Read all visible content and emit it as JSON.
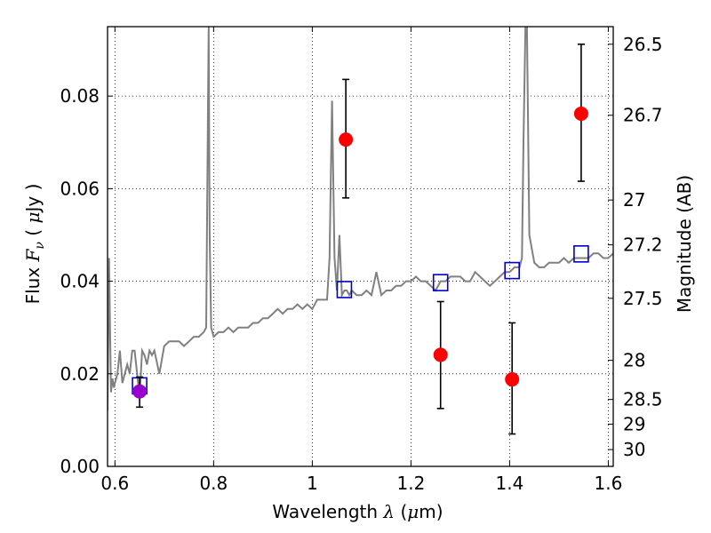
{
  "chart_data": {
    "type": "scatter",
    "xlabel": "Wavelength  λ (μm)",
    "ylabel": "Flux  F_ν  ( μJy )",
    "ylabel_parts": {
      "pre": "Flux ",
      "sym": "F",
      "sub": "ν",
      "paren_open": "  ( ",
      "mu": "μ",
      "unit": "Jy )"
    },
    "xlabel_parts": {
      "pre": "Wavelength ",
      "sym": "λ",
      "open": " (",
      "mu": "μ",
      "unit": "m)"
    },
    "y2label": "Magnitude (AB)",
    "xlim": [
      0.585,
      1.61
    ],
    "ylim": [
      0.0,
      0.095
    ],
    "grid": true,
    "x_ticks": [
      0.6,
      0.8,
      1.0,
      1.2,
      1.4,
      1.6
    ],
    "x_tick_labels": [
      "0.6",
      "0.8",
      "1",
      "1.2",
      "1.4",
      "1.6"
    ],
    "y_ticks": [
      0.0,
      0.02,
      0.04,
      0.06,
      0.08
    ],
    "y_tick_labels": [
      "0.00",
      "0.02",
      "0.04",
      "0.06",
      "0.08"
    ],
    "y2_tick_labels": [
      "26.5",
      "26.7",
      "27",
      "27.2",
      "27.5",
      "28",
      "28.5",
      "29",
      "30"
    ],
    "y2_tick_mags": [
      26.5,
      26.7,
      27.0,
      27.2,
      27.5,
      28.0,
      28.5,
      29.0,
      30.0
    ],
    "series": [
      {
        "kind": "spectrum_line",
        "color": "#808080",
        "x": [
          0.585,
          0.588,
          0.59,
          0.592,
          0.595,
          0.598,
          0.6,
          0.605,
          0.61,
          0.615,
          0.62,
          0.625,
          0.63,
          0.635,
          0.64,
          0.645,
          0.65,
          0.655,
          0.66,
          0.665,
          0.67,
          0.675,
          0.68,
          0.69,
          0.7,
          0.71,
          0.72,
          0.73,
          0.74,
          0.75,
          0.76,
          0.77,
          0.78,
          0.785,
          0.788,
          0.79,
          0.792,
          0.795,
          0.8,
          0.81,
          0.82,
          0.83,
          0.84,
          0.85,
          0.86,
          0.87,
          0.88,
          0.89,
          0.9,
          0.91,
          0.92,
          0.93,
          0.94,
          0.95,
          0.96,
          0.97,
          0.98,
          0.99,
          1.0,
          1.01,
          1.02,
          1.03,
          1.035,
          1.04,
          1.045,
          1.05,
          1.055,
          1.06,
          1.065,
          1.07,
          1.075,
          1.08,
          1.09,
          1.1,
          1.11,
          1.12,
          1.13,
          1.14,
          1.15,
          1.16,
          1.17,
          1.18,
          1.19,
          1.2,
          1.21,
          1.22,
          1.23,
          1.24,
          1.25,
          1.26,
          1.27,
          1.28,
          1.29,
          1.3,
          1.31,
          1.32,
          1.33,
          1.34,
          1.35,
          1.36,
          1.37,
          1.38,
          1.39,
          1.4,
          1.41,
          1.42,
          1.425,
          1.428,
          1.432,
          1.435,
          1.44,
          1.45,
          1.46,
          1.47,
          1.48,
          1.49,
          1.5,
          1.51,
          1.52,
          1.53,
          1.54,
          1.55,
          1.56,
          1.57,
          1.58,
          1.59,
          1.6,
          1.61
        ],
        "y": [
          0.012,
          0.045,
          0.03,
          0.016,
          0.019,
          0.017,
          0.018,
          0.02,
          0.025,
          0.018,
          0.02,
          0.022,
          0.02,
          0.025,
          0.025,
          0.02,
          0.015,
          0.025,
          0.024,
          0.022,
          0.025,
          0.024,
          0.025,
          0.02,
          0.026,
          0.027,
          0.027,
          0.027,
          0.026,
          0.027,
          0.028,
          0.028,
          0.029,
          0.03,
          0.07,
          0.095,
          0.05,
          0.03,
          0.028,
          0.029,
          0.029,
          0.03,
          0.029,
          0.03,
          0.03,
          0.03,
          0.031,
          0.031,
          0.032,
          0.032,
          0.033,
          0.034,
          0.033,
          0.034,
          0.034,
          0.035,
          0.034,
          0.035,
          0.034,
          0.036,
          0.036,
          0.036,
          0.045,
          0.079,
          0.045,
          0.038,
          0.05,
          0.037,
          0.038,
          0.038,
          0.037,
          0.038,
          0.037,
          0.037,
          0.038,
          0.037,
          0.042,
          0.037,
          0.038,
          0.038,
          0.039,
          0.039,
          0.04,
          0.04,
          0.041,
          0.04,
          0.04,
          0.039,
          0.038,
          0.04,
          0.04,
          0.041,
          0.041,
          0.041,
          0.04,
          0.04,
          0.042,
          0.041,
          0.04,
          0.039,
          0.04,
          0.041,
          0.042,
          0.042,
          0.043,
          0.043,
          0.045,
          0.07,
          0.095,
          0.095,
          0.05,
          0.044,
          0.043,
          0.043,
          0.044,
          0.044,
          0.044,
          0.045,
          0.044,
          0.045,
          0.045,
          0.045,
          0.045,
          0.046,
          0.046,
          0.045,
          0.045,
          0.046
        ]
      },
      {
        "kind": "open_squares",
        "color": "#0000cc",
        "x": [
          0.65,
          1.065,
          1.26,
          1.405,
          1.545
        ],
        "y": [
          0.0174,
          0.0382,
          0.0397,
          0.0423,
          0.0459
        ]
      },
      {
        "kind": "filled_circles_with_errors",
        "color": "#ff0000",
        "x": [
          1.068,
          1.26,
          1.405,
          1.545
        ],
        "y": [
          0.0706,
          0.0241,
          0.0188,
          0.0762
        ],
        "yerr_low": [
          0.058,
          0.0125,
          0.007,
          0.0616
        ],
        "yerr_high": [
          0.0836,
          0.0356,
          0.031,
          0.0912
        ]
      },
      {
        "kind": "filled_circles_with_errors",
        "color": "#9900cc",
        "x": [
          0.65
        ],
        "y": [
          0.0162
        ],
        "yerr_low": [
          0.0128
        ],
        "yerr_high": [
          0.0193
        ]
      }
    ]
  }
}
